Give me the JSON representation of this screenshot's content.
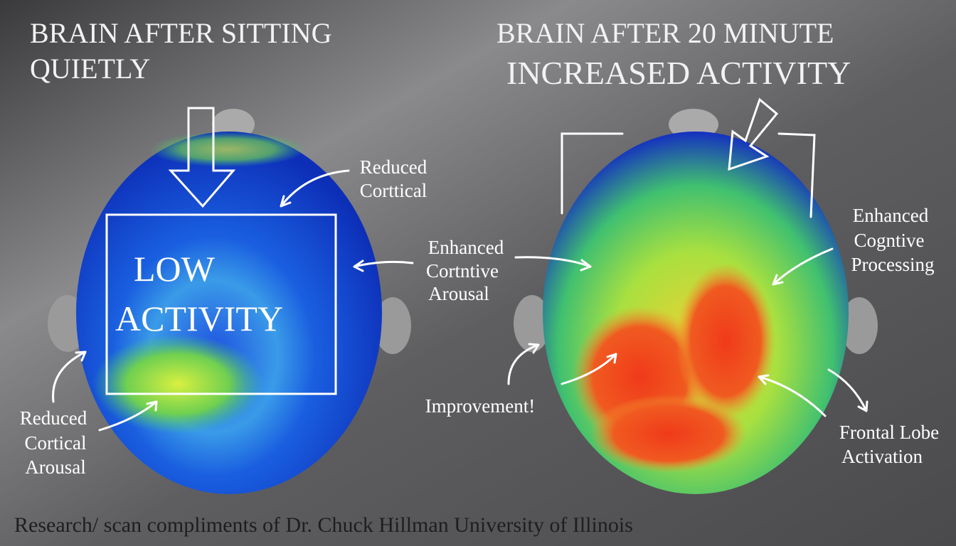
{
  "left_panel": {
    "title": [
      "BRAIN AFTER SITTING",
      "QUIETLY"
    ],
    "overlay": [
      "LOW",
      "ACTIVITY"
    ],
    "annotations": [
      [
        "Reduced",
        "Corttical"
      ],
      [
        "Reduced",
        "Cortical",
        "Arousal"
      ]
    ]
  },
  "center_annotation": [
    "Enhanced",
    "Cortntive",
    "Arousal"
  ],
  "right_panel": {
    "title": [
      "BRAIN AFTER 20 MINUTE",
      "INCREASED ACTIVITY"
    ],
    "annotations": [
      [
        "Enhanced",
        "Cogntive",
        "Processing"
      ],
      [
        "Improvement!"
      ],
      [
        "Frontal Lobe",
        "Activation"
      ]
    ]
  },
  "footer": "Research/ scan compliments of Dr. Chuck Hillman University of Illinois"
}
